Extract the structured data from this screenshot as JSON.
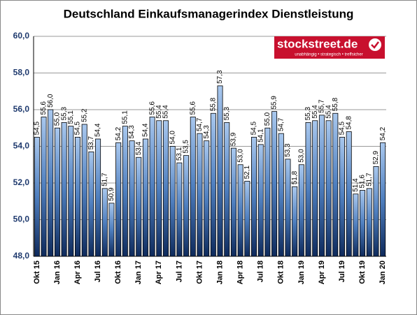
{
  "chart_data": {
    "type": "bar",
    "title": "Deutschland  Einkaufsmanagerindex  Dienstleistung",
    "categories": [
      "Okt 15",
      null,
      null,
      "Jan 16",
      null,
      null,
      "Apr 16",
      null,
      null,
      "Jul 16",
      null,
      null,
      "Okt 16",
      null,
      null,
      "Jan 17",
      null,
      null,
      "Apr 17",
      null,
      null,
      "Jul 17",
      null,
      null,
      "Okt 17",
      null,
      null,
      "Jan 18",
      null,
      null,
      "Apr 18",
      null,
      null,
      "Jul 18",
      null,
      null,
      "Okt 18",
      null,
      null,
      "Jan 19",
      null,
      null,
      "Apr 19",
      null,
      null,
      "Jul 19",
      null,
      null,
      "Okt 19",
      null,
      null,
      "Jan 20"
    ],
    "values": [
      54.5,
      55.6,
      56.0,
      55.0,
      55.3,
      55.1,
      54.5,
      55.2,
      53.7,
      54.4,
      51.7,
      50.9,
      54.2,
      55.1,
      54.3,
      53.4,
      54.4,
      55.6,
      55.4,
      55.4,
      54.0,
      53.1,
      53.5,
      55.6,
      54.7,
      54.3,
      55.8,
      57.3,
      55.3,
      53.9,
      53.0,
      52.1,
      54.5,
      54.1,
      55.0,
      55.9,
      54.7,
      53.3,
      51.8,
      53.0,
      55.3,
      55.4,
      55.7,
      55.4,
      55.8,
      54.5,
      54.8,
      51.4,
      51.6,
      51.7,
      52.9,
      54.2
    ],
    "value_labels": [
      "54,5",
      "55,6",
      "56,0",
      "55,0",
      "55,3",
      "55,1",
      "54,5",
      "55,2",
      "53,7",
      "54,4",
      "51,7",
      "50,9",
      "54,2",
      "55,1",
      "54,3",
      "53,4",
      "54,4",
      "55,6",
      "55,4",
      "55,4",
      "54,0",
      "53,1",
      "53,5",
      "55,6",
      "54,7",
      "54,3",
      "55,8",
      "57,3",
      "55,3",
      "53,9",
      "53,0",
      "52,1",
      "54,5",
      "54,1",
      "55,0",
      "55,9",
      "54,7",
      "53,3",
      "51,8",
      "53,0",
      "55,3",
      "55,4",
      "55,7",
      "55,4",
      "55,8",
      "54,5",
      "54,8",
      "51,4",
      "51,6",
      "51,7",
      "52,9",
      "54,2"
    ],
    "color": "#2a5a9a",
    "ylim": [
      48,
      60
    ],
    "yticks": [
      {
        "value": 48,
        "label": "48,0"
      },
      {
        "value": 50,
        "label": "50,0"
      },
      {
        "value": 52,
        "label": "52,0"
      },
      {
        "value": 54,
        "label": "54,0"
      },
      {
        "value": 56,
        "label": "56,0"
      },
      {
        "value": 58,
        "label": "58,0"
      },
      {
        "value": 60,
        "label": "60,0"
      }
    ],
    "grid": true
  },
  "logo": {
    "name": "stockstreet.de",
    "tagline": "unabhängig • strategisch • treffsicher"
  }
}
